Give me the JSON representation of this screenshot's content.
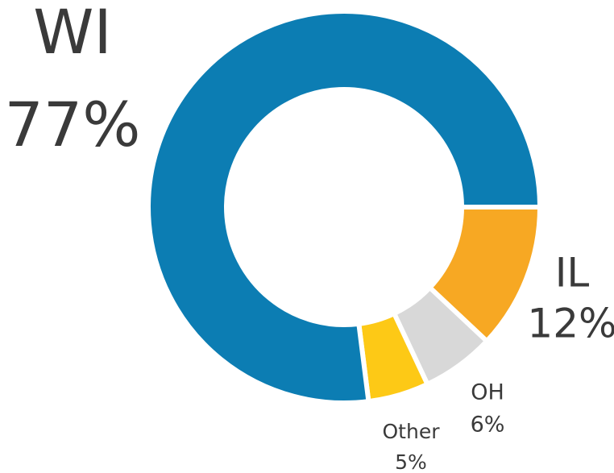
{
  "chart_data": {
    "type": "donut",
    "categories": [
      "IL",
      "OH",
      "Other",
      "WI"
    ],
    "values": [
      12,
      6,
      5,
      77
    ],
    "value_labels": [
      "12%",
      "6%",
      "5%",
      "77%"
    ],
    "colors": [
      "#f7a823",
      "#d8d8d8",
      "#fdc916",
      "#0c7db3"
    ]
  }
}
